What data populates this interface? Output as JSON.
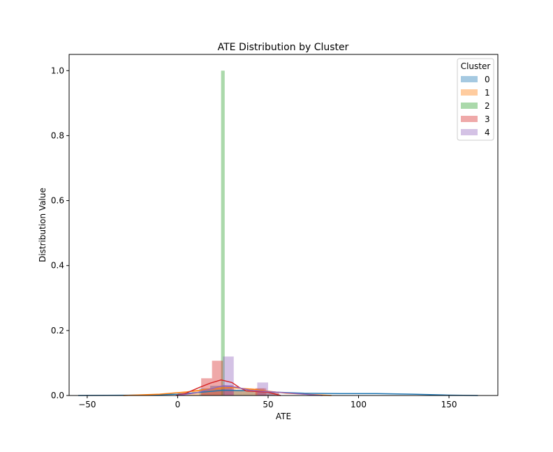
{
  "chart_data": {
    "type": "bar",
    "title": "ATE Distribution by Cluster",
    "xlabel": "ATE",
    "ylabel": "Distribution Value",
    "xlim": [
      -60,
      177
    ],
    "ylim": [
      0,
      1.05
    ],
    "xticks": [
      -50,
      0,
      50,
      100,
      150
    ],
    "yticks": [
      0.0,
      0.2,
      0.4,
      0.6,
      0.8,
      1.0
    ],
    "xtick_labels": [
      "−50",
      "0",
      "50",
      "100",
      "150"
    ],
    "ytick_labels": [
      "0.0",
      "0.2",
      "0.4",
      "0.6",
      "0.8",
      "1.0"
    ],
    "grid": false,
    "legend": {
      "title": "Cluster",
      "placement": "top-right"
    },
    "series": [
      {
        "name": "0",
        "color": "#1f77b4",
        "bins": [
          {
            "x0": 12,
            "x1": 18,
            "value": 0.022
          },
          {
            "x0": 18,
            "x1": 24,
            "value": 0.03
          },
          {
            "x0": 24,
            "x1": 30,
            "value": 0.03
          },
          {
            "x0": 30,
            "x1": 36,
            "value": 0.018
          },
          {
            "x0": 36,
            "x1": 42,
            "value": 0.012
          },
          {
            "x0": 42,
            "x1": 48,
            "value": 0.01
          },
          {
            "x0": 48,
            "x1": 54,
            "value": 0.008
          }
        ],
        "kde": [
          [
            -55,
            0.0
          ],
          [
            -20,
            0.001
          ],
          [
            0,
            0.004
          ],
          [
            15,
            0.011
          ],
          [
            25,
            0.016
          ],
          [
            35,
            0.015
          ],
          [
            50,
            0.011
          ],
          [
            70,
            0.007
          ],
          [
            90,
            0.006
          ],
          [
            110,
            0.006
          ],
          [
            130,
            0.004
          ],
          [
            150,
            0.001
          ],
          [
            166,
            0.0
          ]
        ]
      },
      {
        "name": "1",
        "color": "#ff7f0e",
        "bins": [
          {
            "x0": 0,
            "x1": 8,
            "value": 0.008
          },
          {
            "x0": 8,
            "x1": 16,
            "value": 0.015
          },
          {
            "x0": 16,
            "x1": 24,
            "value": 0.02
          },
          {
            "x0": 24,
            "x1": 32,
            "value": 0.02
          },
          {
            "x0": 32,
            "x1": 40,
            "value": 0.018
          },
          {
            "x0": 40,
            "x1": 48,
            "value": 0.022
          },
          {
            "x0": 48,
            "x1": 56,
            "value": 0.01
          }
        ],
        "kde": [
          [
            -30,
            0.0
          ],
          [
            -10,
            0.004
          ],
          [
            5,
            0.011
          ],
          [
            20,
            0.022
          ],
          [
            30,
            0.024
          ],
          [
            40,
            0.02
          ],
          [
            50,
            0.013
          ],
          [
            60,
            0.007
          ],
          [
            70,
            0.004
          ],
          [
            85,
            0.0
          ]
        ]
      },
      {
        "name": "2",
        "color": "#2ca02c",
        "bins": [
          {
            "x0": 24,
            "x1": 26,
            "value": 1.0
          }
        ],
        "kde": []
      },
      {
        "name": "3",
        "color": "#d62728",
        "bins": [
          {
            "x0": 13,
            "x1": 19,
            "value": 0.053
          },
          {
            "x0": 19,
            "x1": 25,
            "value": 0.107
          },
          {
            "x0": 25,
            "x1": 31,
            "value": 0.032
          },
          {
            "x0": 43,
            "x1": 49,
            "value": 0.022
          }
        ],
        "kde": [
          [
            -1,
            0.0
          ],
          [
            5,
            0.008
          ],
          [
            12,
            0.025
          ],
          [
            18,
            0.038
          ],
          [
            24,
            0.048
          ],
          [
            30,
            0.04
          ],
          [
            34,
            0.025
          ],
          [
            38,
            0.014
          ],
          [
            44,
            0.012
          ],
          [
            50,
            0.01
          ],
          [
            57,
            0.0
          ]
        ]
      },
      {
        "name": "4",
        "color": "#9467bd",
        "bins": [
          {
            "x0": 25,
            "x1": 31,
            "value": 0.12
          },
          {
            "x0": 44,
            "x1": 50,
            "value": 0.04
          },
          {
            "x0": 50,
            "x1": 56,
            "value": 0.01
          }
        ],
        "kde": [
          [
            0,
            0.0
          ],
          [
            10,
            0.008
          ],
          [
            18,
            0.02
          ],
          [
            25,
            0.03
          ],
          [
            32,
            0.026
          ],
          [
            40,
            0.016
          ],
          [
            50,
            0.012
          ],
          [
            60,
            0.008
          ],
          [
            70,
            0.004
          ],
          [
            80,
            0.0
          ]
        ]
      }
    ]
  }
}
